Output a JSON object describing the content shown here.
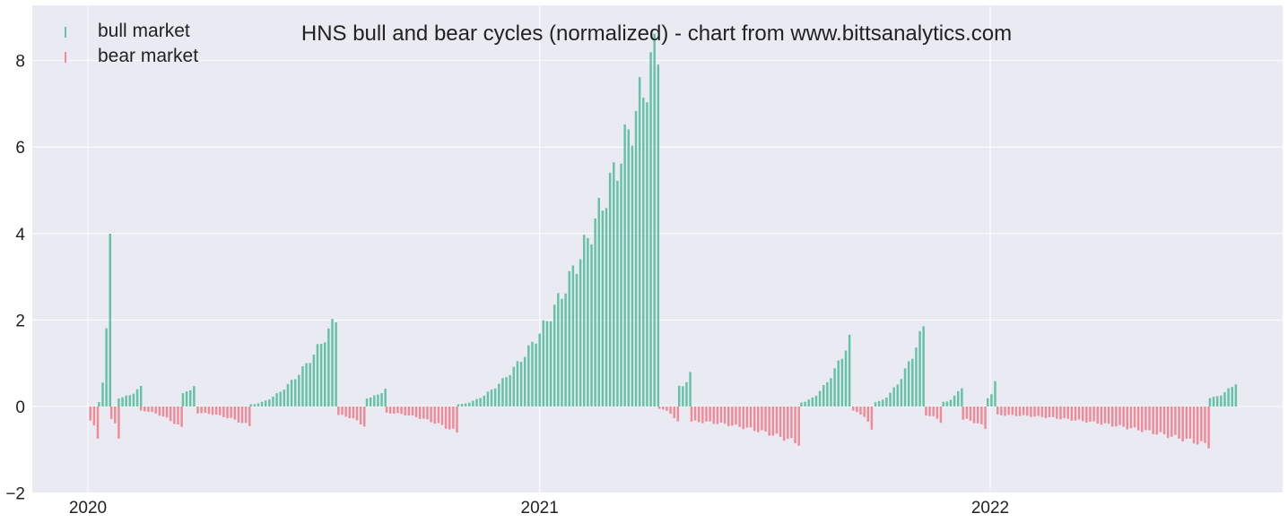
{
  "chart_data": {
    "type": "bar",
    "title": "HNS bull and bear cycles (normalized)  - chart from www.bittsanalytics.com",
    "xlabel": "",
    "ylabel": "",
    "ylim": [
      -2,
      9.1
    ],
    "y_ticks": [
      -2,
      0,
      2,
      4,
      6,
      8
    ],
    "y_tick_labels": [
      "−2",
      "0",
      "2",
      "4",
      "6",
      "8"
    ],
    "x_ticks": [
      "2020-01-01",
      "2021-01-01",
      "2022-01-01"
    ],
    "x_tick_labels": [
      "2020",
      "2021",
      "2022"
    ],
    "grid": true,
    "legend_position": "top-left",
    "colors": {
      "bull": "#66c2a5",
      "bear": "#f08a97",
      "background": "#eaeaf2",
      "grid": "#ffffff"
    },
    "series": [
      {
        "name": "bull market",
        "color": "#66c2a5"
      },
      {
        "name": "bear market",
        "color": "#f08a97"
      }
    ],
    "bar_interval_days": 3,
    "segments": [
      {
        "series": "bear market",
        "start": "2020-01-03",
        "end": "2020-01-09",
        "values": [
          -0.3,
          -0.8
        ]
      },
      {
        "series": "bull market",
        "start": "2020-01-10",
        "end": "2020-01-19",
        "values": [
          0.1,
          3.7
        ]
      },
      {
        "series": "bear market",
        "start": "2020-01-20",
        "end": "2020-01-25",
        "values": [
          -0.3,
          -0.7
        ]
      },
      {
        "series": "bull market",
        "start": "2020-01-26",
        "end": "2020-02-12",
        "values": [
          0.2,
          0.45
        ]
      },
      {
        "series": "bear market",
        "start": "2020-02-13",
        "end": "2020-03-16",
        "values": [
          -0.1,
          -0.5
        ]
      },
      {
        "series": "bull market",
        "start": "2020-03-18",
        "end": "2020-03-28",
        "values": [
          0.3,
          0.5
        ]
      },
      {
        "series": "bear market",
        "start": "2020-03-30",
        "end": "2020-05-10",
        "values": [
          -0.15,
          -0.45
        ]
      },
      {
        "series": "bull market",
        "start": "2020-05-12",
        "end": "2020-07-20",
        "values": [
          0.05,
          2.05
        ]
      },
      {
        "series": "bear market",
        "start": "2020-07-22",
        "end": "2020-08-12",
        "values": [
          -0.2,
          -0.45
        ]
      },
      {
        "series": "bull market",
        "start": "2020-08-14",
        "end": "2020-08-28",
        "values": [
          0.2,
          0.4
        ]
      },
      {
        "series": "bear market",
        "start": "2020-08-30",
        "end": "2020-10-25",
        "values": [
          -0.15,
          -0.6
        ]
      },
      {
        "series": "bull market",
        "start": "2020-10-27",
        "end": "2021-04-06",
        "values": [
          0.05,
          8.4
        ]
      },
      {
        "series": "bear market",
        "start": "2021-04-08",
        "end": "2021-04-22",
        "values": [
          -0.05,
          -0.35
        ]
      },
      {
        "series": "bull market",
        "start": "2021-04-24",
        "end": "2021-05-02",
        "values": [
          0.45,
          0.75
        ]
      },
      {
        "series": "bear market",
        "start": "2021-05-04",
        "end": "2021-07-30",
        "values": [
          -0.35,
          -0.85
        ]
      },
      {
        "series": "bull market",
        "start": "2021-08-01",
        "end": "2021-09-10",
        "values": [
          0.1,
          1.55
        ]
      },
      {
        "series": "bear market",
        "start": "2021-09-12",
        "end": "2021-09-28",
        "values": [
          -0.1,
          -0.5
        ]
      },
      {
        "series": "bull market",
        "start": "2021-09-30",
        "end": "2021-11-08",
        "values": [
          0.1,
          1.85
        ]
      },
      {
        "series": "bear market",
        "start": "2021-11-10",
        "end": "2021-11-22",
        "values": [
          -0.2,
          -0.35
        ]
      },
      {
        "series": "bull market",
        "start": "2021-11-24",
        "end": "2021-12-08",
        "values": [
          0.1,
          0.45
        ]
      },
      {
        "series": "bear market",
        "start": "2021-12-10",
        "end": "2021-12-28",
        "values": [
          -0.3,
          -0.5
        ]
      },
      {
        "series": "bull market",
        "start": "2021-12-30",
        "end": "2022-01-05",
        "values": [
          0.2,
          0.55
        ]
      },
      {
        "series": "bear market",
        "start": "2022-01-07",
        "end": "2022-06-26",
        "values": [
          -0.2,
          -0.9
        ]
      },
      {
        "series": "bull market",
        "start": "2022-06-28",
        "end": "2022-07-20",
        "values": [
          0.2,
          0.55
        ]
      }
    ]
  }
}
